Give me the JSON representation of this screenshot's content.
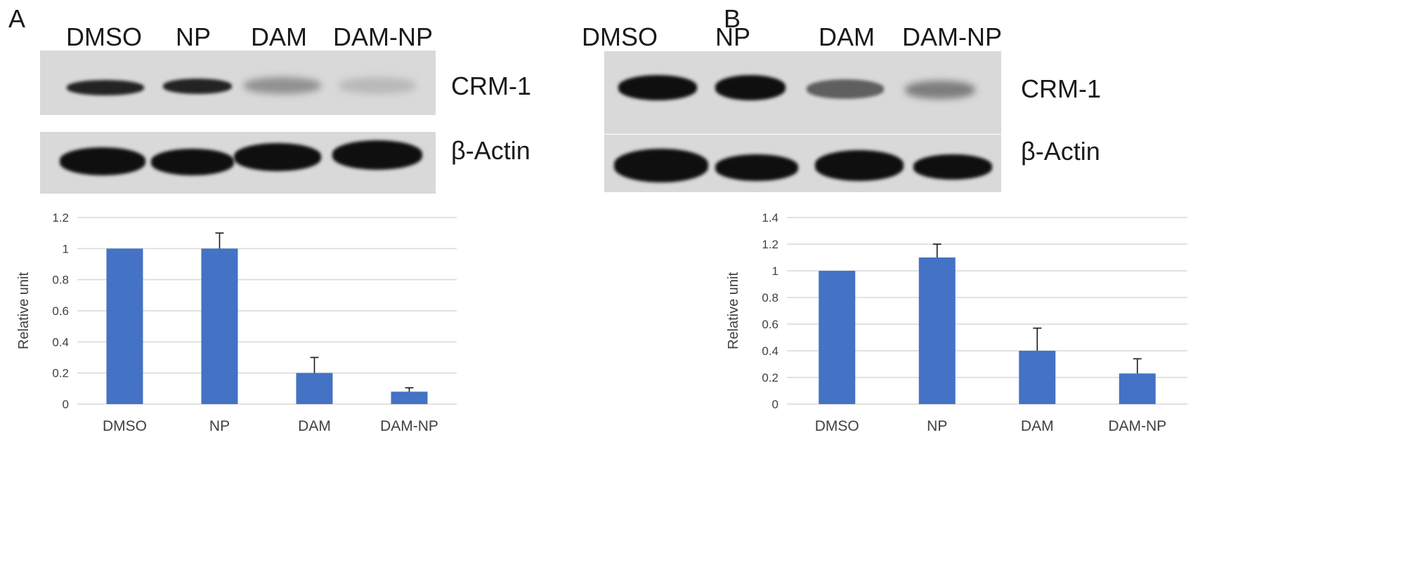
{
  "panels": [
    {
      "letter": "A",
      "lanes": [
        "DMSO",
        "NP",
        "DAM",
        "DAM-NP"
      ],
      "blots": [
        {
          "protein": "CRM-1",
          "intensity": [
            0.9,
            0.9,
            0.35,
            0.15
          ]
        },
        {
          "protein": "β-Actin",
          "intensity": [
            1.0,
            1.0,
            1.0,
            1.0
          ]
        }
      ]
    },
    {
      "letter": "B",
      "lanes": [
        "DMSO",
        "NP",
        "DAM",
        "DAM-NP"
      ],
      "blots": [
        {
          "protein": "CRM-1",
          "intensity": [
            1.0,
            1.0,
            0.6,
            0.45
          ]
        },
        {
          "protein": "β-Actin",
          "intensity": [
            1.0,
            1.0,
            1.0,
            1.0
          ]
        }
      ]
    }
  ],
  "chart_data": [
    {
      "type": "bar",
      "categories": [
        "DMSO",
        "NP",
        "DAM",
        "DAM-NP"
      ],
      "values": [
        1.0,
        1.0,
        0.2,
        0.08
      ],
      "errors": [
        0,
        0.1,
        0.1,
        0.025
      ],
      "ylabel": "Relative unit",
      "ylim": [
        0,
        1.2
      ],
      "yticks": [
        0,
        0.2,
        0.4,
        0.6,
        0.8,
        1,
        1.2
      ],
      "yticklabels": [
        "0",
        "0.2",
        "0.4",
        "0.6",
        "0.8",
        "1",
        "1.2"
      ],
      "bar_color": "#4472c4",
      "grid": true
    },
    {
      "type": "bar",
      "categories": [
        "DMSO",
        "NP",
        "DAM",
        "DAM-NP"
      ],
      "values": [
        1.0,
        1.1,
        0.4,
        0.23
      ],
      "errors": [
        0,
        0.1,
        0.17,
        0.11
      ],
      "ylabel": "Relative unit",
      "ylim": [
        0,
        1.4
      ],
      "yticks": [
        0,
        0.2,
        0.4,
        0.6,
        0.8,
        1,
        1.2,
        1.4
      ],
      "yticklabels": [
        "0",
        "0.2",
        "0.4",
        "0.6",
        "0.8",
        "1",
        "1.2",
        "1.4"
      ],
      "bar_color": "#4472c4",
      "grid": true
    }
  ]
}
